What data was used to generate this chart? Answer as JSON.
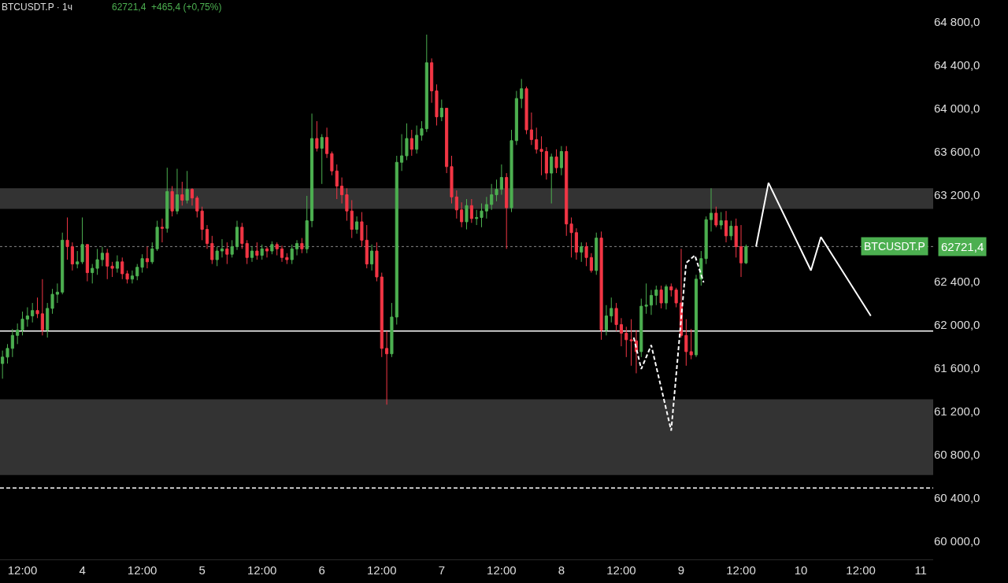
{
  "chart_data": {
    "type": "candlestick",
    "title": "BTCUSDT.P · 1ч",
    "subtitle": "62721,4  +465,4 (+0,75%)",
    "colors": [
      "#4caf50",
      "#4caf50",
      "#4caf50",
      "#4caf50",
      "#4caf50",
      "#4caf50",
      "#4caf50",
      "#f23645",
      "#f23645",
      "#4caf50",
      "#4caf50",
      "#4caf50",
      "#4caf50",
      "#f23645",
      "#f23645",
      "#4caf50",
      "#4caf50",
      "#f23645",
      "#4caf50",
      "#4caf50",
      "#4caf50",
      "#f23645",
      "#f23645",
      "#4caf50",
      "#f23645",
      "#f23645",
      "#4caf50",
      "#4caf50",
      "#4caf50",
      "#f23645",
      "#4caf50",
      "#4caf50",
      "#f23645",
      "#4caf50",
      "#f23645",
      "#4caf50",
      "#f23645",
      "#4caf50",
      "#f23645",
      "#f23645",
      "#f23645",
      "#f23645",
      "#f23645",
      "#4caf50",
      "#4caf50",
      "#f23645",
      "#4caf50",
      "#4caf50",
      "#f23645",
      "#f23645",
      "#4caf50",
      "#f23645",
      "#4caf50",
      "#f23645",
      "#4caf50",
      "#f23645",
      "#f23645",
      "#f23645",
      "#4caf50",
      "#4caf50",
      "#f23645",
      "#4caf50",
      "#4caf50",
      "#f23645",
      "#4caf50",
      "#f23645",
      "#f23645",
      "#f23645",
      "#f23645",
      "#f23645",
      "#f23645",
      "#4caf50",
      "#f23645",
      "#f23645",
      "#4caf50",
      "#f23645",
      "#f23645",
      "#f23645",
      "#4caf50",
      "#4caf50",
      "#4caf50",
      "#4caf50",
      "#f23645",
      "#4caf50",
      "#4caf50",
      "#4caf50",
      "#f23645",
      "#f23645",
      "#4caf50",
      "#f23645",
      "#f23645",
      "#f23645",
      "#f23645",
      "#4caf50",
      "#f23645",
      "#4caf50",
      "#4caf50",
      "#4caf50",
      "#4caf50",
      "#4caf50",
      "#4caf50",
      "#f23645",
      "#4caf50",
      "#4caf50",
      "#4caf50",
      "#f23645",
      "#f23645",
      "#f23645",
      "#f23645",
      "#f23645",
      "#4caf50",
      "#f23645",
      "#4caf50",
      "#f23645",
      "#f23645",
      "#f23645",
      "#4caf50",
      "#f23645",
      "#f23645",
      "#4caf50",
      "#f23645",
      "#4caf50",
      "#4caf50",
      "#f23645",
      "#f23645",
      "#f23645",
      "#f23645",
      "#f23645",
      "#4caf50",
      "#4caf50",
      "#4caf50",
      "#4caf50",
      "#f23645",
      "#4caf50",
      "#f23645",
      "#f23645",
      "#f23645",
      "#f23645",
      "#f23645",
      "#4caf50",
      "#4caf50",
      "#4caf50",
      "#4caf50",
      "#f23645",
      "#4caf50",
      "#f23645",
      "#4caf50",
      "#f23645",
      "#f23645",
      "#4caf50"
    ],
    "x": [
      "--10-03T08:00",
      "--10-03T09:00",
      "--10-03T10:00",
      "--10-03T11:00",
      "--10-03T12:00",
      "--10-03T13:00",
      "--10-03T14:00",
      "--10-03T15:00",
      "--10-03T16:00",
      "--10-03T17:00",
      "--10-03T18:00",
      "--10-03T19:00",
      "--10-03T20:00",
      "--10-03T21:00",
      "--10-03T22:00",
      "--10-03T23:00",
      "--10-04T00:00",
      "--10-04T01:00",
      "--10-04T02:00",
      "--10-04T03:00",
      "--10-04T04:00",
      "--10-04T05:00",
      "--10-04T06:00",
      "--10-04T07:00",
      "--10-04T08:00",
      "--10-04T09:00",
      "--10-04T10:00",
      "--10-04T11:00",
      "--10-04T12:00",
      "--10-04T13:00",
      "--10-04T14:00",
      "--10-04T15:00",
      "--10-04T16:00",
      "--10-04T17:00",
      "--10-04T18:00",
      "--10-04T19:00",
      "--10-04T20:00",
      "--10-04T21:00",
      "--10-04T22:00",
      "--10-04T23:00",
      "--10-05T00:00",
      "--10-05T01:00",
      "--10-05T02:00",
      "--10-05T03:00",
      "--10-05T04:00",
      "--10-05T05:00",
      "--10-05T06:00",
      "--10-05T07:00",
      "--10-05T08:00",
      "--10-05T09:00",
      "--10-05T10:00",
      "--10-05T11:00",
      "--10-05T12:00",
      "--10-05T13:00",
      "--10-05T14:00",
      "--10-05T15:00",
      "--10-05T16:00",
      "--10-05T17:00",
      "--10-05T18:00",
      "--10-05T19:00",
      "--10-05T20:00",
      "--10-05T21:00",
      "--10-05T22:00",
      "--10-05T23:00",
      "--10-06T00:00",
      "--10-06T01:00",
      "--10-06T02:00",
      "--10-06T03:00",
      "--10-06T04:00",
      "--10-06T05:00",
      "--10-06T06:00",
      "--10-06T07:00",
      "--10-06T08:00",
      "--10-06T09:00",
      "--10-06T10:00",
      "--10-06T11:00",
      "--10-06T12:00",
      "--10-06T13:00",
      "--10-06T14:00",
      "--10-06T15:00",
      "--10-06T16:00",
      "--10-06T17:00",
      "--10-06T18:00",
      "--10-06T19:00",
      "--10-06T20:00",
      "--10-06T21:00",
      "--10-06T22:00",
      "--10-06T23:00",
      "--10-07T00:00",
      "--10-07T01:00",
      "--10-07T02:00",
      "--10-07T03:00",
      "--10-07T04:00",
      "--10-07T05:00",
      "--10-07T06:00",
      "--10-07T07:00",
      "--10-07T08:00",
      "--10-07T09:00",
      "--10-07T10:00",
      "--10-07T11:00",
      "--10-07T12:00",
      "--10-07T13:00",
      "--10-07T14:00",
      "--10-07T15:00",
      "--10-07T16:00",
      "--10-07T17:00",
      "--10-07T18:00",
      "--10-07T19:00",
      "--10-07T20:00",
      "--10-07T21:00",
      "--10-07T22:00",
      "--10-07T23:00",
      "--10-08T00:00",
      "--10-08T01:00",
      "--10-08T02:00",
      "--10-08T03:00",
      "--10-08T04:00",
      "--10-08T05:00",
      "--10-08T06:00",
      "--10-08T07:00",
      "--10-08T08:00",
      "--10-08T09:00",
      "--10-08T10:00",
      "--10-08T11:00",
      "--10-08T12:00",
      "--10-08T13:00",
      "--10-08T14:00",
      "--10-08T15:00",
      "--10-08T16:00",
      "--10-08T17:00",
      "--10-08T18:00",
      "--10-08T19:00",
      "--10-08T20:00",
      "--10-08T21:00",
      "--10-08T22:00",
      "--10-08T23:00",
      "--10-09T00:00",
      "--10-09T01:00",
      "--10-09T02:00",
      "--10-09T03:00",
      "--10-09T04:00",
      "--10-09T05:00",
      "--10-09T06:00",
      "--10-09T07:00",
      "--10-09T08:00",
      "--10-09T09:00",
      "--10-09T10:00",
      "--10-09T11:00",
      "--10-09T12:00",
      "--10-09T13:00"
    ],
    "ohlc": [
      [
        61640,
        61760,
        61500,
        61700
      ],
      [
        61700,
        61820,
        61640,
        61780
      ],
      [
        61780,
        61960,
        61700,
        61900
      ],
      [
        61900,
        62010,
        61820,
        61950
      ],
      [
        61950,
        62120,
        61900,
        62050
      ],
      [
        62050,
        62160,
        61980,
        62080
      ],
      [
        62080,
        62200,
        62020,
        62130
      ],
      [
        62130,
        62250,
        62060,
        62100
      ],
      [
        62100,
        62420,
        61900,
        61950
      ],
      [
        61950,
        62200,
        61880,
        62150
      ],
      [
        62150,
        62330,
        62100,
        62280
      ],
      [
        62280,
        62380,
        62200,
        62300
      ],
      [
        62300,
        62850,
        62280,
        62780
      ],
      [
        62780,
        62990,
        62600,
        62720
      ],
      [
        62720,
        62760,
        62500,
        62560
      ],
      [
        62560,
        62680,
        62520,
        62580
      ],
      [
        62580,
        62990,
        62560,
        62740
      ],
      [
        62740,
        62740,
        62400,
        62480
      ],
      [
        62480,
        62560,
        62380,
        62520
      ],
      [
        62520,
        62700,
        62460,
        62600
      ],
      [
        62600,
        62720,
        62540,
        62660
      ],
      [
        62660,
        62700,
        62420,
        62540
      ],
      [
        62540,
        62580,
        62440,
        62520
      ],
      [
        62520,
        62640,
        62480,
        62580
      ],
      [
        62580,
        62620,
        62420,
        62470
      ],
      [
        62470,
        62500,
        62380,
        62420
      ],
      [
        62420,
        62500,
        62380,
        62450
      ],
      [
        62450,
        62560,
        62410,
        62530
      ],
      [
        62530,
        62650,
        62480,
        62610
      ],
      [
        62610,
        62720,
        62520,
        62580
      ],
      [
        62580,
        62760,
        62560,
        62700
      ],
      [
        62700,
        62960,
        62680,
        62900
      ],
      [
        62900,
        62980,
        62760,
        62890
      ],
      [
        62890,
        63450,
        62850,
        63230
      ],
      [
        63230,
        63280,
        63000,
        63050
      ],
      [
        63050,
        63440,
        63020,
        63200
      ],
      [
        63200,
        63320,
        63100,
        63150
      ],
      [
        63150,
        63420,
        63120,
        63250
      ],
      [
        63250,
        63260,
        63100,
        63170
      ],
      [
        63170,
        63190,
        62990,
        63050
      ],
      [
        63050,
        63090,
        62780,
        62880
      ],
      [
        62880,
        62920,
        62700,
        62750
      ],
      [
        62750,
        62820,
        62560,
        62600
      ],
      [
        62600,
        62720,
        62540,
        62680
      ],
      [
        62680,
        62790,
        62620,
        62700
      ],
      [
        62700,
        62760,
        62560,
        62650
      ],
      [
        62650,
        62780,
        62620,
        62720
      ],
      [
        62720,
        62960,
        62690,
        62900
      ],
      [
        62900,
        62940,
        62700,
        62750
      ],
      [
        62750,
        62780,
        62560,
        62620
      ],
      [
        62620,
        62720,
        62580,
        62680
      ],
      [
        62680,
        62760,
        62600,
        62640
      ],
      [
        62640,
        62740,
        62600,
        62700
      ],
      [
        62700,
        62720,
        62620,
        62680
      ],
      [
        62680,
        62770,
        62650,
        62740
      ],
      [
        62740,
        62760,
        62640,
        62700
      ],
      [
        62700,
        62730,
        62580,
        62620
      ],
      [
        62620,
        62660,
        62560,
        62600
      ],
      [
        62600,
        62740,
        62560,
        62700
      ],
      [
        62700,
        62780,
        62640,
        62750
      ],
      [
        62750,
        62800,
        62660,
        62700
      ],
      [
        62700,
        63190,
        62660,
        62960
      ],
      [
        62960,
        63950,
        62900,
        63720
      ],
      [
        63720,
        63880,
        63600,
        63630
      ],
      [
        63630,
        63760,
        63300,
        63730
      ],
      [
        63730,
        63820,
        63540,
        63580
      ],
      [
        63580,
        63600,
        63380,
        63420
      ],
      [
        63420,
        63480,
        63160,
        63280
      ],
      [
        63280,
        63360,
        63120,
        63200
      ],
      [
        63200,
        63260,
        62960,
        63050
      ],
      [
        63050,
        63150,
        62800,
        62880
      ],
      [
        62880,
        63000,
        62840,
        62950
      ],
      [
        62950,
        63040,
        62720,
        62780
      ],
      [
        62780,
        62920,
        62520,
        62560
      ],
      [
        62560,
        62740,
        62500,
        62680
      ],
      [
        62680,
        62760,
        62400,
        62440
      ],
      [
        62440,
        62480,
        61700,
        61780
      ],
      [
        61780,
        61940,
        61260,
        61730
      ],
      [
        61730,
        62200,
        61700,
        62070
      ],
      [
        62070,
        63560,
        62000,
        63500
      ],
      [
        63500,
        63760,
        63420,
        63560
      ],
      [
        63560,
        63860,
        63520,
        63720
      ],
      [
        63720,
        63800,
        63560,
        63620
      ],
      [
        63620,
        63840,
        63580,
        63750
      ],
      [
        63750,
        63880,
        63700,
        63810
      ],
      [
        63810,
        64680,
        63780,
        64420
      ],
      [
        64420,
        64460,
        64050,
        64160
      ],
      [
        64160,
        64220,
        63840,
        63920
      ],
      [
        63920,
        64080,
        63880,
        64000
      ],
      [
        64000,
        64000,
        63400,
        63460
      ],
      [
        63460,
        63560,
        63120,
        63180
      ],
      [
        63180,
        63240,
        62980,
        63060
      ],
      [
        63060,
        63130,
        62900,
        62950
      ],
      [
        62950,
        63160,
        62880,
        63100
      ],
      [
        63100,
        63160,
        62940,
        62980
      ],
      [
        62980,
        63060,
        62920,
        62990
      ],
      [
        62990,
        63120,
        62900,
        63050
      ],
      [
        63050,
        63180,
        62980,
        63110
      ],
      [
        63110,
        63300,
        63060,
        63200
      ],
      [
        63200,
        63340,
        63140,
        63250
      ],
      [
        63250,
        63480,
        63200,
        63360
      ],
      [
        63360,
        63400,
        62700,
        63080
      ],
      [
        63080,
        63800,
        63040,
        63700
      ],
      [
        63700,
        64160,
        63660,
        64090
      ],
      [
        64090,
        64270,
        64000,
        64180
      ],
      [
        64180,
        64200,
        63760,
        63800
      ],
      [
        63800,
        63960,
        63660,
        63710
      ],
      [
        63710,
        63820,
        63580,
        63620
      ],
      [
        63620,
        63740,
        63380,
        63600
      ],
      [
        63600,
        63640,
        63340,
        63400
      ],
      [
        63400,
        63580,
        63120,
        63550
      ],
      [
        63550,
        63620,
        63400,
        63450
      ],
      [
        63450,
        63650,
        63380,
        63600
      ],
      [
        63600,
        63650,
        62820,
        62930
      ],
      [
        62930,
        62990,
        62620,
        62850
      ],
      [
        62850,
        62890,
        62600,
        62670
      ],
      [
        62670,
        62760,
        62580,
        62720
      ],
      [
        62720,
        62760,
        62540,
        62620
      ],
      [
        62620,
        62660,
        62480,
        62500
      ],
      [
        62500,
        62850,
        62460,
        62800
      ],
      [
        62800,
        62860,
        61860,
        61950
      ],
      [
        61950,
        62180,
        61900,
        62080
      ],
      [
        62080,
        62250,
        62020,
        62150
      ],
      [
        62150,
        62200,
        61940,
        62000
      ],
      [
        62000,
        62060,
        61800,
        61920
      ],
      [
        61920,
        61980,
        61700,
        61860
      ],
      [
        61860,
        62050,
        61620,
        61850
      ],
      [
        61850,
        61950,
        61550,
        61750
      ],
      [
        61750,
        62240,
        61700,
        62170
      ],
      [
        62170,
        62380,
        62100,
        62180
      ],
      [
        62180,
        62320,
        62090,
        62270
      ],
      [
        62270,
        62360,
        62180,
        62320
      ],
      [
        62320,
        62360,
        62150,
        62200
      ],
      [
        62200,
        62370,
        62140,
        62350
      ],
      [
        62350,
        62380,
        62260,
        62320
      ],
      [
        62320,
        62340,
        62160,
        62200
      ],
      [
        62200,
        62700,
        61880,
        61900
      ],
      [
        61900,
        62050,
        61620,
        61750
      ],
      [
        61750,
        61960,
        61680,
        61720
      ],
      [
        61720,
        62460,
        61700,
        62420
      ],
      [
        62420,
        62680,
        62360,
        62610
      ],
      [
        62610,
        63000,
        62560,
        62970
      ],
      [
        62970,
        63260,
        62860,
        63030
      ],
      [
        63030,
        63090,
        62900,
        62920
      ],
      [
        62920,
        63040,
        62880,
        62960
      ],
      [
        62960,
        63050,
        62760,
        62820
      ],
      [
        62820,
        62960,
        62780,
        62910
      ],
      [
        62910,
        62980,
        62620,
        62720
      ],
      [
        62720,
        62920,
        62440,
        62570
      ],
      [
        62570,
        62740,
        62560,
        62721.4
      ]
    ],
    "series": [
      {
        "type": "line",
        "color": "#ffffff",
        "line_style": "solid",
        "x": [
          "--10-09T15:00",
          "--10-09T17:30",
          "--10-10T02:00",
          "--10-10T04:00",
          "--10-10T14:00"
        ],
        "values": [
          62720,
          63310,
          62500,
          62810,
          62080
        ]
      },
      {
        "type": "line",
        "color": "#ffffff",
        "line_style": "dashed",
        "x": [
          "--10-08T14:30",
          "--10-08T16:00",
          "--10-08T18:00",
          "--10-08T22:00",
          "--10-09T01:00",
          "--10-09T02:45",
          "--10-09T04:30"
        ],
        "values": [
          61880,
          61590,
          61810,
          61020,
          62570,
          62640,
          62390
        ]
      }
    ],
    "ref_lines": [
      {
        "axis": "y",
        "value": 61940,
        "color": "#ffffff",
        "line_style": "solid"
      },
      {
        "axis": "y",
        "value": 60490,
        "color": "#ffffff",
        "line_style": "dashed"
      },
      {
        "axis": "y",
        "value": 62721.4,
        "color": "#888888",
        "line_style": "dotted",
        "label": "BTCUSDT.P"
      }
    ],
    "bands": [
      {
        "axis": "y",
        "from": 63070,
        "to": 63260,
        "color": "#333333"
      },
      {
        "axis": "y",
        "from": 60610,
        "to": 61310,
        "color": "#333333"
      }
    ],
    "annotations": [
      "62721,4"
    ],
    "xlim": [
      "--10-03T07:30",
      "--10-11T02:30"
    ],
    "xticks": [
      {
        "value": "--10-03T12:00",
        "label": "12:00"
      },
      {
        "value": "--10-04",
        "label": "4"
      },
      {
        "value": "--10-04T12:00",
        "label": "12:00"
      },
      {
        "value": "--10-05",
        "label": "5"
      },
      {
        "value": "--10-05T12:00",
        "label": "12:00"
      },
      {
        "value": "--10-06",
        "label": "6"
      },
      {
        "value": "--10-06T12:00",
        "label": "12:00"
      },
      {
        "value": "--10-07",
        "label": "7"
      },
      {
        "value": "--10-07T12:00",
        "label": "12:00"
      },
      {
        "value": "--10-08",
        "label": "8"
      },
      {
        "value": "--10-08T12:00",
        "label": "12:00"
      },
      {
        "value": "--10-09",
        "label": "9"
      },
      {
        "value": "--10-09T12:00",
        "label": "12:00"
      },
      {
        "value": "--10-10",
        "label": "10"
      },
      {
        "value": "--10-10T12:00",
        "label": "12:00"
      },
      {
        "value": "--10-11",
        "label": "11"
      }
    ],
    "ylim": [
      59830,
      65000
    ],
    "yticks": [
      {
        "value": 60000,
        "label": "60 000,0"
      },
      {
        "value": 60400,
        "label": "60 400,0"
      },
      {
        "value": 60800,
        "label": "60 800,0"
      },
      {
        "value": 61200,
        "label": "61 200,0"
      },
      {
        "value": 61600,
        "label": "61 600,0"
      },
      {
        "value": 62000,
        "label": "62 000,0"
      },
      {
        "value": 62400,
        "label": "62 400,0"
      },
      {
        "value": 63200,
        "label": "63 200,0"
      },
      {
        "value": 63600,
        "label": "63 600,0"
      },
      {
        "value": 64000,
        "label": "64 000,0"
      },
      {
        "value": 64400,
        "label": "64 400,0"
      },
      {
        "value": 64800,
        "label": "64 800,0"
      }
    ],
    "grid": false
  }
}
